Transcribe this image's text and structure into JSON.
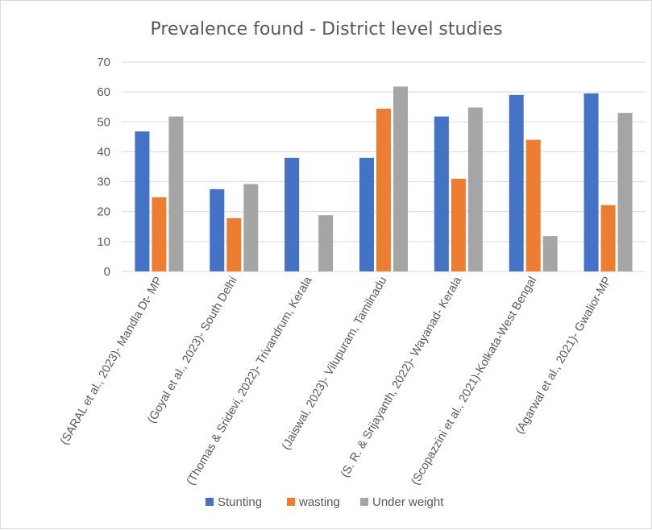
{
  "chart_data": {
    "type": "bar",
    "title": "Prevalence found - District level studies",
    "xlabel": "",
    "ylabel": "",
    "ylim": [
      0,
      70
    ],
    "yticks": [
      0,
      10,
      20,
      30,
      40,
      50,
      60,
      70
    ],
    "grid": true,
    "legend_position": "bottom",
    "categories": [
      "(SARAL et al., 2023)- Mandla Dt- MP",
      "(Goyal et al., 2023)- South Delhi",
      "(Thomas & Sridevi, 2022)- Trivandrum, Kerala",
      "(Jaiswal, 2023)- Vilupuram, Tamilnadu",
      "(S. R. & Srijayanth, 2022)- Wayanad- Kerala",
      "(Scopazzini et al., 2021)-Kolkata-West Bengal",
      "(Agarwal et al., 2021)- Gwalior-MP"
    ],
    "series": [
      {
        "name": "Stunting",
        "color": "#4472c4",
        "values": [
          46.8,
          27.5,
          38,
          38,
          51.8,
          59,
          59.5
        ]
      },
      {
        "name": "wasting",
        "color": "#ed7d31",
        "values": [
          24.8,
          17.8,
          null,
          54.4,
          31,
          44,
          22.2
        ]
      },
      {
        "name": "Under weight",
        "color": "#a5a5a5",
        "values": [
          51.8,
          29.2,
          18.8,
          61.8,
          54.8,
          11.8,
          53
        ]
      }
    ]
  }
}
